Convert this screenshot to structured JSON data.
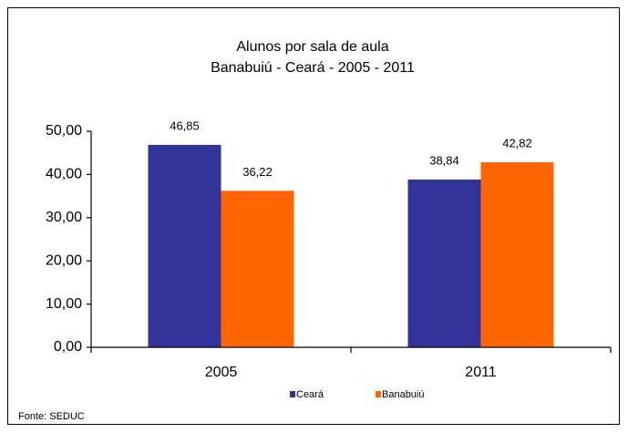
{
  "chart_data": {
    "type": "bar",
    "title": "Alunos por sala de aula",
    "subtitle": "Banabuiú - Ceará - 2005 - 2011",
    "categories": [
      "2005",
      "2011"
    ],
    "series": [
      {
        "name": "Ceará",
        "color": "#333399",
        "values": [
          46.85,
          38.84
        ],
        "value_labels": [
          "46,85",
          "38,84"
        ]
      },
      {
        "name": "Banabuiú",
        "color": "#ff6600",
        "values": [
          36.22,
          42.82
        ],
        "value_labels": [
          "36,22",
          "42,82"
        ]
      }
    ],
    "ylim": [
      0,
      50
    ],
    "yticks": [
      {
        "value": 0,
        "label": "0,00"
      },
      {
        "value": 10,
        "label": "10,00"
      },
      {
        "value": 20,
        "label": "20,00"
      },
      {
        "value": 30,
        "label": "30,00"
      },
      {
        "value": 40,
        "label": "40,00"
      },
      {
        "value": 50,
        "label": "50,00"
      }
    ],
    "grid": false,
    "legend": "bottom",
    "source": "Fonte: SEDUC"
  }
}
